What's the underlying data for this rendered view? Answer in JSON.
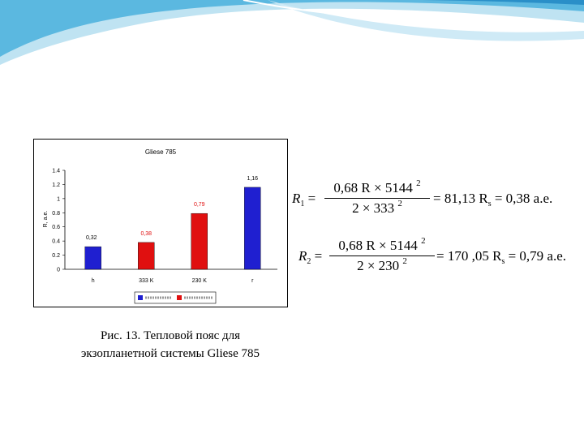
{
  "chart_data": {
    "type": "bar",
    "title": "Gliese 785",
    "ylabel": "R, a.e.",
    "ylim": [
      0,
      1.4
    ],
    "yticks": [
      "0",
      "0.2",
      "0.4",
      "0.6",
      "0.8",
      "1",
      "1.2",
      "1.4"
    ],
    "categories": [
      "h",
      "333 K",
      "230 K",
      "r"
    ],
    "series": [
      {
        "name": "",
        "color": "#1f1fd0",
        "values": [
          0.32,
          null,
          null,
          1.16
        ],
        "labels": [
          "0,32",
          "",
          "",
          "1,16"
        ]
      },
      {
        "name": "",
        "color": "#e01010",
        "values": [
          null,
          0.38,
          0.79,
          null
        ],
        "labels": [
          "",
          "0,38",
          "0,79",
          ""
        ]
      }
    ],
    "legend_position": "bottom"
  },
  "caption": {
    "line1": "Рис. 13. Тепловой пояс для",
    "line2": "экзопланетной системы Gliese 785"
  },
  "formulas": {
    "r1": {
      "lhs": "R",
      "lhs_sub": "1",
      "numerator": "0,68 R × 5144",
      "numerator_sup": "2",
      "denominator": "2 × 333",
      "denominator_sup": "2",
      "result": "= 81,13 R",
      "result_sub": "s",
      "final": "= 0,38 a.e."
    },
    "r2": {
      "lhs": "R",
      "lhs_sub": "2",
      "numerator": "0,68 R × 5144",
      "numerator_sup": "2",
      "denominator": "2 × 230",
      "denominator_sup": "2",
      "result": "= 170 ,05 R",
      "result_sub": "s",
      "final": "= 0,79 a.e."
    }
  },
  "colors": {
    "swoosh_light": "#bfe3f2",
    "swoosh_mid": "#5bb8e0",
    "swoosh_dark": "#2a8fc8"
  }
}
